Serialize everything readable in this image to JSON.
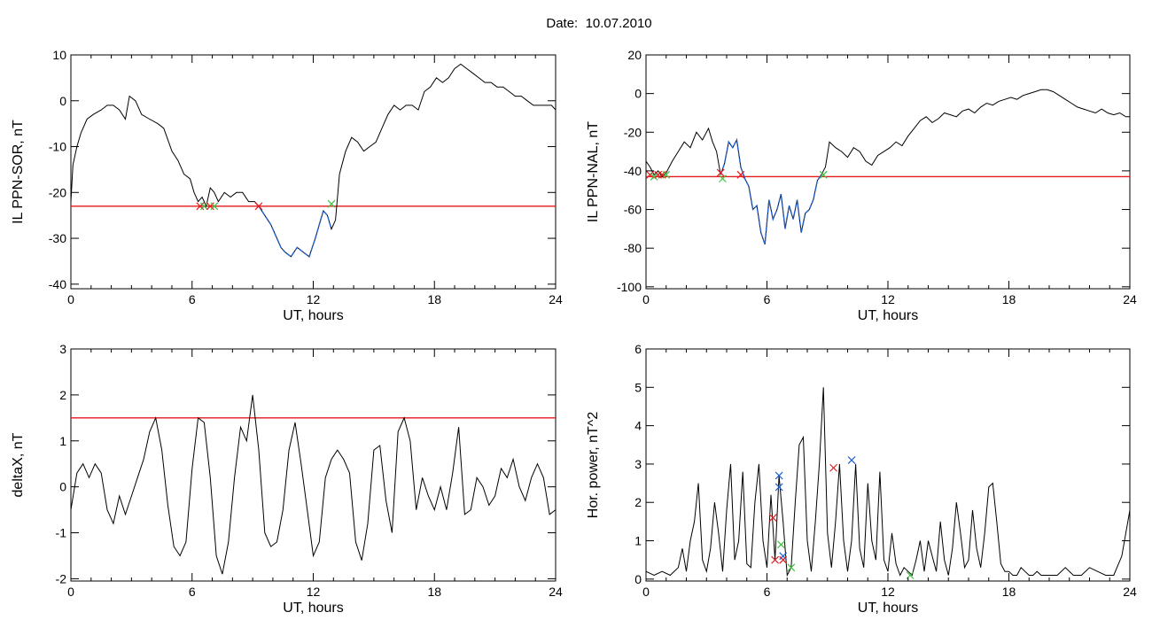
{
  "header": {
    "date_label": "Date:",
    "date_value": "10.07.2010"
  },
  "colors": {
    "trace": "#000000",
    "threshold": "#e41a1c",
    "highlight": "#1f5fd0",
    "marker_red": "#e41a1c",
    "marker_green": "#3fbf3f",
    "marker_blue": "#1f5fd0"
  },
  "chart_data": [
    {
      "id": "ppn-sor",
      "type": "line",
      "xlabel": "UT, hours",
      "ylabel": "IL PPN-SOR, nT",
      "xlim": [
        0,
        24
      ],
      "ylim": [
        -41,
        10
      ],
      "xticks": [
        0,
        6,
        12,
        18,
        24
      ],
      "yticks": [
        10,
        0,
        -10,
        -20,
        -30,
        -40
      ],
      "grid": false,
      "threshold": -23,
      "highlight_range": [
        9.3,
        12.9
      ],
      "series": [
        {
          "x": [
            0,
            0.1,
            0.3,
            0.5,
            0.8,
            1.1,
            1.5,
            1.8,
            2.1,
            2.4,
            2.7,
            2.9,
            3.2,
            3.5,
            3.9,
            4.3,
            4.6,
            5.0,
            5.3,
            5.6,
            5.9,
            6.1,
            6.3,
            6.5,
            6.7,
            6.9,
            7.1,
            7.3,
            7.6,
            7.9,
            8.2,
            8.5,
            8.8,
            9.1,
            9.3,
            9.6,
            9.9,
            10.2,
            10.4,
            10.6,
            10.9,
            11.2,
            11.5,
            11.8,
            12.1,
            12.3,
            12.5,
            12.7,
            12.9,
            13.1,
            13.3,
            13.6,
            13.9,
            14.2,
            14.5,
            14.8,
            15.1,
            15.4,
            15.7,
            16.0,
            16.3,
            16.6,
            16.9,
            17.2,
            17.5,
            17.8,
            18.1,
            18.4,
            18.7,
            19.0,
            19.3,
            19.6,
            19.9,
            20.2,
            20.5,
            20.8,
            21.1,
            21.4,
            21.7,
            22.0,
            22.3,
            22.6,
            22.9,
            23.2,
            23.5,
            23.8,
            24.0
          ],
          "y": [
            -22,
            -14,
            -10,
            -7,
            -4,
            -3,
            -2,
            -1,
            -1,
            -2,
            -4,
            1,
            0,
            -3,
            -4,
            -5,
            -6,
            -11,
            -13,
            -16,
            -17,
            -20,
            -22,
            -21,
            -23,
            -19,
            -20,
            -22,
            -20,
            -21,
            -20,
            -20,
            -22,
            -22,
            -23,
            -25,
            -27,
            -30,
            -32,
            -33,
            -34,
            -32,
            -33,
            -34,
            -30,
            -27,
            -24,
            -25,
            -28,
            -26,
            -16,
            -11,
            -8,
            -9,
            -11,
            -10,
            -9,
            -6,
            -3,
            -1,
            -2,
            -1,
            -1,
            -2,
            2,
            3,
            5,
            4,
            5,
            7,
            8,
            7,
            6,
            5,
            4,
            4,
            3,
            3,
            2,
            1,
            1,
            0,
            -1,
            -1,
            -1,
            -1,
            -2
          ]
        }
      ],
      "markers": [
        {
          "x": 6.4,
          "y": -23,
          "color": "red"
        },
        {
          "x": 6.6,
          "y": -23,
          "color": "green"
        },
        {
          "x": 6.9,
          "y": -23,
          "color": "red"
        },
        {
          "x": 7.1,
          "y": -23,
          "color": "green"
        },
        {
          "x": 9.3,
          "y": -23,
          "color": "red"
        },
        {
          "x": 12.9,
          "y": -22.5,
          "color": "green"
        }
      ]
    },
    {
      "id": "ppn-nal",
      "type": "line",
      "xlabel": "UT, hours",
      "ylabel": "IL PPN-NAL, nT",
      "xlim": [
        0,
        24
      ],
      "ylim": [
        -101,
        20
      ],
      "xticks": [
        0,
        6,
        12,
        18,
        24
      ],
      "yticks": [
        20,
        0,
        -20,
        -40,
        -60,
        -80,
        -100
      ],
      "grid": false,
      "threshold": -43,
      "highlight_range": [
        3.7,
        8.8
      ],
      "series": [
        {
          "x": [
            0,
            0.2,
            0.4,
            0.6,
            0.8,
            1.0,
            1.3,
            1.6,
            1.9,
            2.2,
            2.5,
            2.8,
            3.1,
            3.3,
            3.5,
            3.7,
            3.9,
            4.1,
            4.3,
            4.5,
            4.7,
            4.9,
            5.1,
            5.3,
            5.5,
            5.7,
            5.9,
            6.1,
            6.3,
            6.5,
            6.7,
            6.9,
            7.1,
            7.3,
            7.5,
            7.7,
            7.9,
            8.1,
            8.3,
            8.5,
            8.7,
            8.9,
            9.1,
            9.4,
            9.7,
            10.0,
            10.3,
            10.6,
            10.9,
            11.2,
            11.5,
            11.8,
            12.1,
            12.4,
            12.7,
            13.0,
            13.3,
            13.6,
            13.9,
            14.2,
            14.5,
            14.8,
            15.1,
            15.4,
            15.7,
            16.0,
            16.3,
            16.6,
            16.9,
            17.2,
            17.5,
            17.8,
            18.1,
            18.4,
            18.7,
            19.0,
            19.3,
            19.6,
            19.9,
            20.2,
            20.5,
            20.8,
            21.1,
            21.4,
            21.7,
            22.0,
            22.3,
            22.6,
            22.9,
            23.2,
            23.5,
            23.8,
            24.0
          ],
          "y": [
            -35,
            -38,
            -42,
            -40,
            -43,
            -41,
            -35,
            -30,
            -25,
            -28,
            -20,
            -24,
            -18,
            -25,
            -30,
            -42,
            -36,
            -25,
            -28,
            -24,
            -38,
            -44,
            -48,
            -60,
            -58,
            -72,
            -78,
            -55,
            -65,
            -60,
            -52,
            -70,
            -58,
            -65,
            -55,
            -72,
            -62,
            -60,
            -55,
            -45,
            -42,
            -38,
            -25,
            -28,
            -30,
            -33,
            -28,
            -30,
            -35,
            -37,
            -32,
            -30,
            -28,
            -25,
            -27,
            -22,
            -18,
            -14,
            -12,
            -15,
            -13,
            -10,
            -11,
            -12,
            -9,
            -8,
            -10,
            -7,
            -5,
            -6,
            -4,
            -3,
            -2,
            -3,
            -1,
            0,
            1,
            2,
            2,
            1,
            -1,
            -3,
            -5,
            -7,
            -8,
            -9,
            -10,
            -8,
            -10,
            -11,
            -10,
            -12,
            -12
          ]
        }
      ],
      "markers": [
        {
          "x": 0.2,
          "y": -42,
          "color": "red"
        },
        {
          "x": 0.4,
          "y": -43,
          "color": "green"
        },
        {
          "x": 0.6,
          "y": -42,
          "color": "red"
        },
        {
          "x": 0.8,
          "y": -42,
          "color": "red"
        },
        {
          "x": 1.0,
          "y": -42,
          "color": "green"
        },
        {
          "x": 3.7,
          "y": -41,
          "color": "red"
        },
        {
          "x": 3.8,
          "y": -44,
          "color": "green"
        },
        {
          "x": 4.7,
          "y": -42,
          "color": "red"
        },
        {
          "x": 8.8,
          "y": -42,
          "color": "green"
        }
      ]
    },
    {
      "id": "deltax",
      "type": "line",
      "xlabel": "UT, hours",
      "ylabel": "deltaX, nT",
      "xlim": [
        0,
        24
      ],
      "ylim": [
        -2.05,
        3
      ],
      "xticks": [
        0,
        6,
        12,
        18,
        24
      ],
      "yticks": [
        3,
        2,
        1,
        0,
        -1,
        -2
      ],
      "grid": false,
      "threshold": 1.5,
      "series": [
        {
          "x": [
            0,
            0.3,
            0.6,
            0.9,
            1.2,
            1.5,
            1.8,
            2.1,
            2.4,
            2.7,
            3.0,
            3.3,
            3.6,
            3.9,
            4.2,
            4.5,
            4.8,
            5.1,
            5.4,
            5.7,
            6.0,
            6.3,
            6.6,
            6.9,
            7.2,
            7.5,
            7.8,
            8.1,
            8.4,
            8.7,
            9.0,
            9.3,
            9.6,
            9.9,
            10.2,
            10.5,
            10.8,
            11.1,
            11.4,
            11.7,
            12.0,
            12.3,
            12.6,
            12.9,
            13.2,
            13.5,
            13.8,
            14.1,
            14.4,
            14.7,
            15.0,
            15.3,
            15.6,
            15.9,
            16.2,
            16.5,
            16.8,
            17.1,
            17.4,
            17.7,
            18.0,
            18.3,
            18.6,
            18.9,
            19.2,
            19.5,
            19.8,
            20.1,
            20.4,
            20.7,
            21.0,
            21.3,
            21.6,
            21.9,
            22.2,
            22.5,
            22.8,
            23.1,
            23.4,
            23.7,
            24.0
          ],
          "y": [
            -0.5,
            0.3,
            0.5,
            0.2,
            0.5,
            0.3,
            -0.5,
            -0.8,
            -0.2,
            -0.6,
            -0.2,
            0.2,
            0.6,
            1.2,
            1.5,
            0.8,
            -0.4,
            -1.3,
            -1.5,
            -1.2,
            0.4,
            1.5,
            1.4,
            0.2,
            -1.5,
            -1.9,
            -1.2,
            0.2,
            1.3,
            1.0,
            2.0,
            0.8,
            -1.0,
            -1.3,
            -1.2,
            -0.5,
            0.8,
            1.4,
            0.5,
            -0.5,
            -1.5,
            -1.2,
            0.2,
            0.6,
            0.8,
            0.6,
            0.3,
            -1.2,
            -1.6,
            -0.8,
            0.8,
            0.9,
            -0.3,
            -1.0,
            1.2,
            1.5,
            1.0,
            -0.5,
            0.2,
            -0.2,
            -0.5,
            0.0,
            -0.5,
            0.3,
            1.3,
            -0.6,
            -0.5,
            0.2,
            0.0,
            -0.4,
            -0.2,
            0.4,
            0.2,
            0.6,
            0.0,
            -0.3,
            0.2,
            0.5,
            0.2,
            -0.6,
            -0.5
          ]
        }
      ]
    },
    {
      "id": "hor-power",
      "type": "line",
      "xlabel": "UT, hours",
      "ylabel": "Hor. power, nT^2",
      "xlim": [
        0,
        24
      ],
      "ylim": [
        -0.05,
        6
      ],
      "xticks": [
        0,
        6,
        12,
        18,
        24
      ],
      "yticks": [
        6,
        5,
        4,
        3,
        2,
        1,
        0
      ],
      "grid": false,
      "series": [
        {
          "x": [
            0,
            0.4,
            0.8,
            1.2,
            1.6,
            1.8,
            2.0,
            2.2,
            2.4,
            2.6,
            2.8,
            3.0,
            3.2,
            3.4,
            3.6,
            3.8,
            4.0,
            4.2,
            4.4,
            4.6,
            4.8,
            5.0,
            5.2,
            5.4,
            5.6,
            5.8,
            6.0,
            6.2,
            6.4,
            6.6,
            6.8,
            7.0,
            7.2,
            7.4,
            7.6,
            7.8,
            8.0,
            8.2,
            8.4,
            8.6,
            8.8,
            9.0,
            9.2,
            9.4,
            9.6,
            9.8,
            10.0,
            10.2,
            10.4,
            10.6,
            10.8,
            11.0,
            11.2,
            11.4,
            11.6,
            11.8,
            12.0,
            12.2,
            12.4,
            12.6,
            12.8,
            13.0,
            13.2,
            13.4,
            13.6,
            13.8,
            14.0,
            14.2,
            14.4,
            14.6,
            14.8,
            15.0,
            15.2,
            15.4,
            15.6,
            15.8,
            16.0,
            16.2,
            16.4,
            16.6,
            16.8,
            17.0,
            17.2,
            17.4,
            17.6,
            17.8,
            18.0,
            18.2,
            18.4,
            18.6,
            18.8,
            19.0,
            19.2,
            19.4,
            19.6,
            19.8,
            20.0,
            20.4,
            20.8,
            21.2,
            21.6,
            22.0,
            22.4,
            22.8,
            23.2,
            23.6,
            24.0
          ],
          "y": [
            0.2,
            0.1,
            0.2,
            0.1,
            0.3,
            0.8,
            0.2,
            1.0,
            1.5,
            2.5,
            0.5,
            0.2,
            0.8,
            2.0,
            1.2,
            0.2,
            1.8,
            3.0,
            0.5,
            1.0,
            2.8,
            0.4,
            0.3,
            2.0,
            3.0,
            1.0,
            0.3,
            2.2,
            0.5,
            2.7,
            1.5,
            0.1,
            0.3,
            2.0,
            3.5,
            3.7,
            1.0,
            0.2,
            1.5,
            3.0,
            5.0,
            1.2,
            0.3,
            1.5,
            3.0,
            1.0,
            0.2,
            1.0,
            3.0,
            0.8,
            0.3,
            2.5,
            1.0,
            0.5,
            2.8,
            0.5,
            0.2,
            1.2,
            0.4,
            0.1,
            0.3,
            0.2,
            0.1,
            0.5,
            1.0,
            0.2,
            1.0,
            0.6,
            0.2,
            1.5,
            0.5,
            0.1,
            0.8,
            2.0,
            1.2,
            0.3,
            0.5,
            1.8,
            0.8,
            0.3,
            1.2,
            2.4,
            2.5,
            1.5,
            0.4,
            0.2,
            0.2,
            0.1,
            0.1,
            0.3,
            0.2,
            0.1,
            0.1,
            0.2,
            0.1,
            0.1,
            0.1,
            0.1,
            0.3,
            0.1,
            0.1,
            0.3,
            0.2,
            0.1,
            0.1,
            0.6,
            1.8
          ]
        }
      ],
      "markers": [
        {
          "x": 6.3,
          "y": 1.6,
          "color": "red"
        },
        {
          "x": 6.4,
          "y": 0.5,
          "color": "red"
        },
        {
          "x": 6.6,
          "y": 2.7,
          "color": "blue"
        },
        {
          "x": 6.6,
          "y": 2.4,
          "color": "blue"
        },
        {
          "x": 6.7,
          "y": 0.9,
          "color": "green"
        },
        {
          "x": 6.8,
          "y": 0.6,
          "color": "blue"
        },
        {
          "x": 6.8,
          "y": 0.5,
          "color": "red"
        },
        {
          "x": 7.2,
          "y": 0.3,
          "color": "green"
        },
        {
          "x": 9.3,
          "y": 2.9,
          "color": "red"
        },
        {
          "x": 10.2,
          "y": 3.1,
          "color": "blue"
        },
        {
          "x": 13.1,
          "y": 0.1,
          "color": "green"
        }
      ]
    }
  ]
}
